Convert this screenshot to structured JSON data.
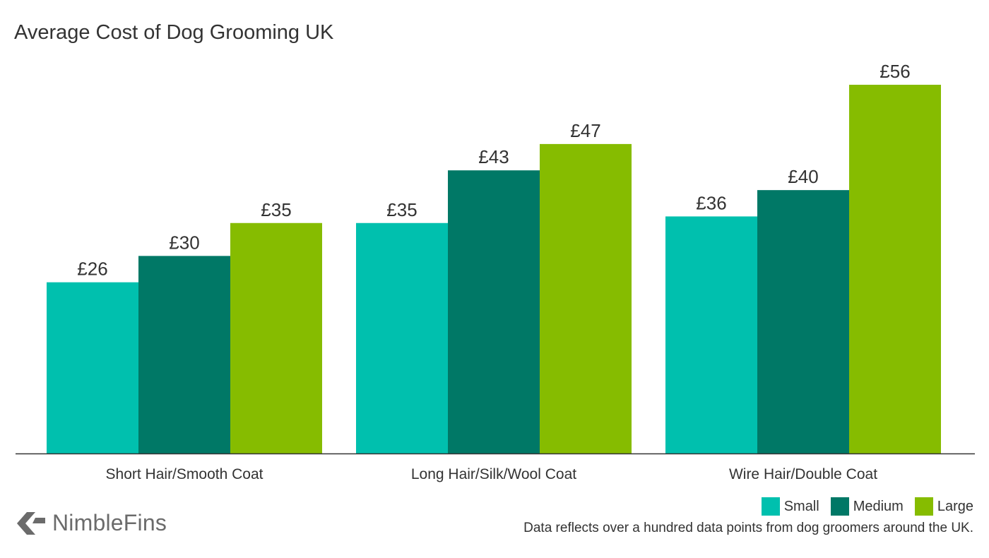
{
  "chart_data": {
    "type": "bar",
    "title": "Average Cost of Dog Grooming UK",
    "categories": [
      "Short Hair/Smooth Coat",
      "Long Hair/Silk/Wool Coat",
      "Wire Hair/Double Coat"
    ],
    "series": [
      {
        "name": "Small",
        "color": "#00c0ae",
        "values": [
          26,
          35,
          36
        ],
        "labels": [
          "£26",
          "£35",
          "£36"
        ]
      },
      {
        "name": "Medium",
        "color": "#007866",
        "values": [
          30,
          43,
          40
        ],
        "labels": [
          "£30",
          "£43",
          "£40"
        ]
      },
      {
        "name": "Large",
        "color": "#86bc00",
        "values": [
          35,
          47,
          56
        ],
        "labels": [
          "£35",
          "£47",
          "£56"
        ]
      }
    ],
    "xlabel": "",
    "ylabel": "",
    "ylim": [
      0,
      56
    ],
    "grid": false,
    "legend_position": "bottom-right"
  },
  "footnote": "Data reflects over a hundred data points from dog groomers around the UK.",
  "logo": {
    "text": "NimbleFins",
    "color": "#6b6b6b"
  }
}
